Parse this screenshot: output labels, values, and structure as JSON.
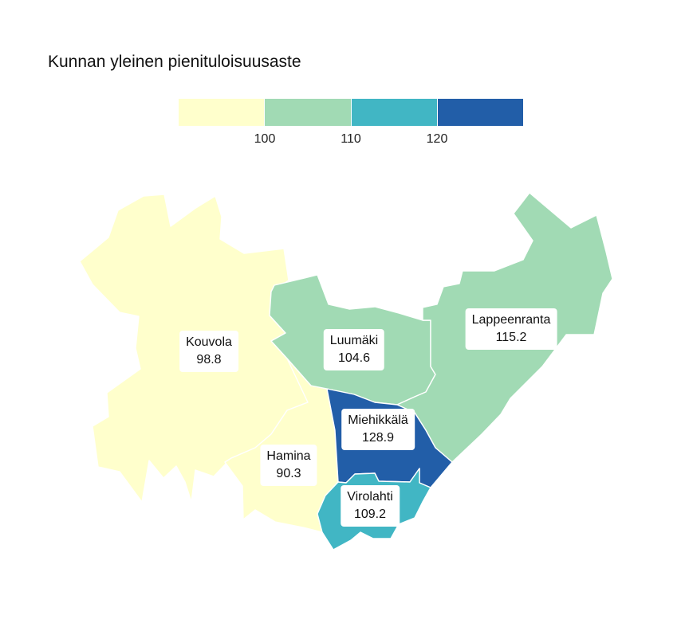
{
  "title": "Kunnan yleinen pienituloisuusaste",
  "legend": {
    "bins": [
      {
        "color": "#ffffcc"
      },
      {
        "color": "#a1dab4"
      },
      {
        "color": "#41b6c4"
      },
      {
        "color": "#225ea8"
      }
    ],
    "ticks": [
      "100",
      "110",
      "120"
    ]
  },
  "municipalities": [
    {
      "name": "Kouvola",
      "value": "98.8",
      "color": "#ffffcc"
    },
    {
      "name": "Hamina",
      "value": "90.3",
      "color": "#ffffcc"
    },
    {
      "name": "Luumäki",
      "value": "104.6",
      "color": "#a1dab4"
    },
    {
      "name": "Virolahti",
      "value": "109.2",
      "color": "#a1dab4"
    },
    {
      "name": "Lappeenranta",
      "value": "115.2",
      "color": "#41b6c4"
    },
    {
      "name": "Miehikkälä",
      "value": "128.9",
      "color": "#225ea8"
    }
  ]
}
